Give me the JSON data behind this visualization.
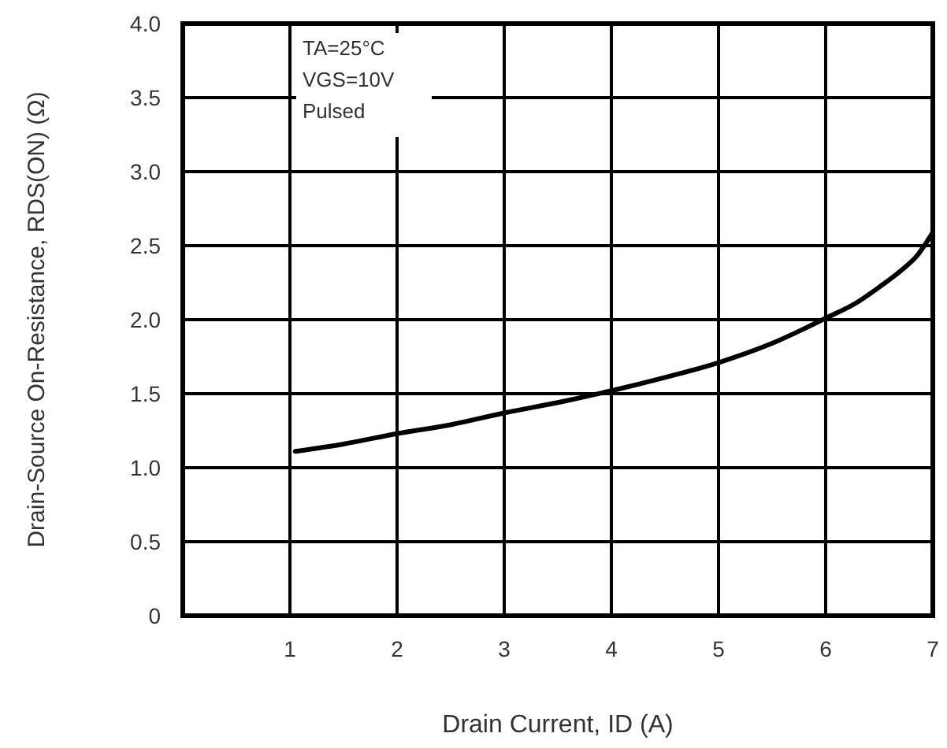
{
  "chart_data": {
    "type": "line",
    "xlabel": "Drain Current, ID (A)",
    "ylabel": "Drain-Source On-Resistance, RDS(ON) (Ω)",
    "annotations": [
      "TA=25°C",
      "VGS=10V",
      "Pulsed"
    ],
    "series": [
      {
        "color": "#000000",
        "x": [
          1.05,
          1.5,
          2,
          2.5,
          3,
          3.5,
          4,
          4.5,
          5,
          5.5,
          6,
          6.3,
          6.5,
          6.7,
          6.85,
          7
        ],
        "values": [
          1.11,
          1.16,
          1.23,
          1.29,
          1.37,
          1.44,
          1.52,
          1.61,
          1.71,
          1.84,
          2.01,
          2.12,
          2.22,
          2.33,
          2.43,
          2.59
        ]
      }
    ],
    "xlim": [
      0,
      7
    ],
    "xticks": [
      1,
      2,
      3,
      4,
      5,
      6,
      7
    ],
    "ylim": [
      0,
      4
    ],
    "yticks": [
      0,
      0.5,
      {
        "value": 1,
        "label": "1.0"
      },
      1.5,
      {
        "value": 2,
        "label": "2.0"
      },
      2.5,
      {
        "value": 3,
        "label": "3.0"
      },
      3.5,
      {
        "value": 4,
        "label": "4.0"
      }
    ],
    "grid": true,
    "marker": "none",
    "line_style": "solid"
  }
}
